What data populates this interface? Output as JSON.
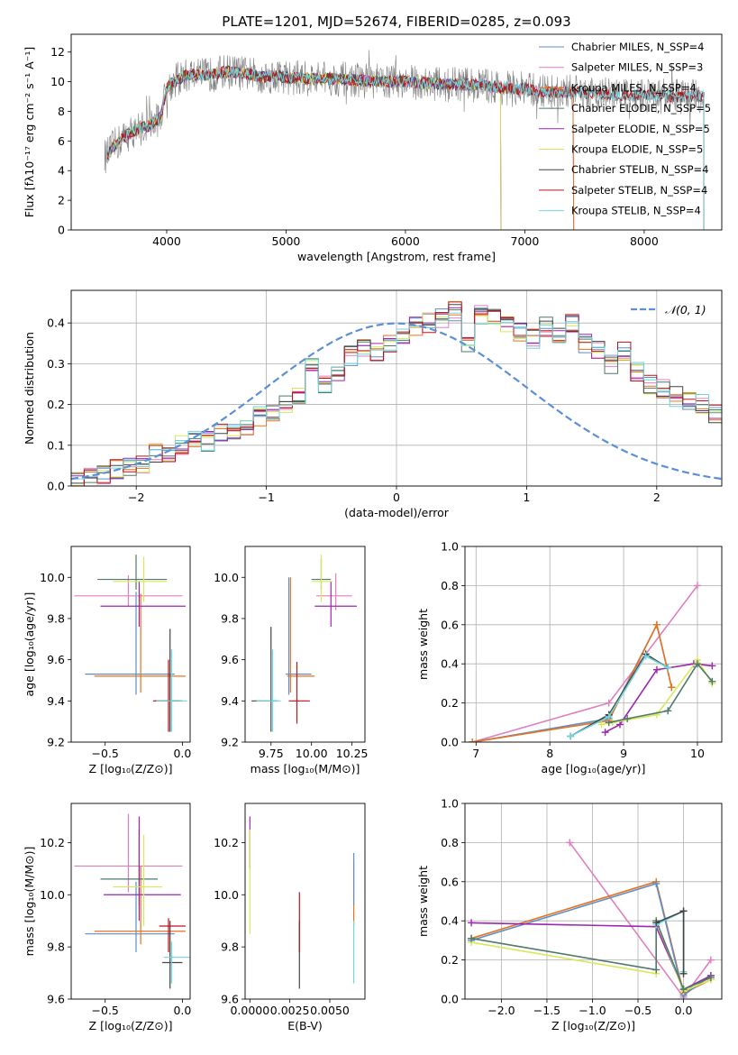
{
  "chart_data": [
    {
      "type": "line",
      "id": "spectrum",
      "title": "PLATE=1201, MJD=52674, FIBERID=0285, z=0.093",
      "xlabel": "wavelength [Angstrom, rest frame]",
      "ylabel": "Flux [fλ10⁻¹⁷ erg cm⁻² s⁻¹ A⁻¹]",
      "xlim": [
        3200,
        8650
      ],
      "ylim": [
        0,
        13.2
      ],
      "xticks": [
        4000,
        5000,
        6000,
        7000,
        8000
      ],
      "yticks": [
        0,
        2,
        4,
        6,
        8,
        10,
        12
      ],
      "grid": false,
      "legend_position": "top-right",
      "continuum": {
        "x": [
          3500,
          3550,
          3650,
          3750,
          3850,
          3950,
          4000,
          4100,
          4200,
          4300,
          4400,
          4500,
          4600,
          4700,
          4800,
          4900,
          5000,
          5200,
          5400,
          5600,
          5800,
          6000,
          6200,
          6400,
          6600,
          6800,
          7000,
          7200,
          7400,
          7600,
          7800,
          8000,
          8200,
          8400
        ],
        "y": [
          5.0,
          5.6,
          6.3,
          6.8,
          7.0,
          7.6,
          9.6,
          10.2,
          10.5,
          10.4,
          10.5,
          10.7,
          10.6,
          10.5,
          10.3,
          10.4,
          10.3,
          10.2,
          10.2,
          10.1,
          10.0,
          10.0,
          9.9,
          9.8,
          9.8,
          9.6,
          9.5,
          9.3,
          9.3,
          9.2,
          9.1,
          9.1,
          9.0,
          9.0
        ]
      },
      "model_series": [
        {
          "name": "Chabrier MILES, N_SSP=4",
          "color": "#5b8fc9",
          "wl_range": [
            3500,
            7410
          ]
        },
        {
          "name": "Salpeter MILES, N_SSP=3",
          "color": "#e07fbd",
          "wl_range": [
            3500,
            7410
          ]
        },
        {
          "name": "Kroupa MILES, N_SSP=4",
          "color": "#e8731f",
          "wl_range": [
            3500,
            7410
          ]
        },
        {
          "name": "Chabrier ELODIE, N_SSP=5",
          "color": "#4f7a6a",
          "wl_range": [
            3500,
            6800
          ]
        },
        {
          "name": "Salpeter ELODIE, N_SSP=5",
          "color": "#9c27b0",
          "wl_range": [
            3500,
            6800
          ]
        },
        {
          "name": "Kroupa ELODIE, N_SSP=5",
          "color": "#d8e85a",
          "wl_range": [
            3500,
            6800
          ]
        },
        {
          "name": "Chabrier STELIB, N_SSP=4",
          "color": "#444444",
          "wl_range": [
            3500,
            8500
          ]
        },
        {
          "name": "Salpeter STELIB, N_SSP=4",
          "color": "#c0121b",
          "wl_range": [
            3500,
            8500
          ]
        },
        {
          "name": "Kroupa STELIB, N_SSP=4",
          "color": "#6fd6e0",
          "wl_range": [
            3500,
            8500
          ]
        }
      ],
      "data_color": "#808080"
    },
    {
      "type": "bar",
      "id": "residuals",
      "xlabel": "(data-model)/error",
      "ylabel": "Normed distribution",
      "xlim": [
        -2.5,
        2.5
      ],
      "ylim": [
        0,
        0.48
      ],
      "xticks": [
        -2,
        -1,
        0,
        1,
        2
      ],
      "yticks": [
        0.0,
        0.1,
        0.2,
        0.3,
        0.4
      ],
      "grid": true,
      "legend_position": "top-right",
      "legend": "𝒩(0, 1)",
      "gaussian": {
        "mu": 0,
        "sigma": 1,
        "color": "#5b8fd6"
      },
      "bin_width": 0.1,
      "bin_start": -2.5,
      "histogram": [
        0.01,
        0.02,
        0.03,
        0.04,
        0.05,
        0.05,
        0.08,
        0.07,
        0.1,
        0.11,
        0.11,
        0.13,
        0.14,
        0.15,
        0.17,
        0.18,
        0.2,
        0.22,
        0.29,
        0.25,
        0.28,
        0.32,
        0.34,
        0.33,
        0.35,
        0.37,
        0.39,
        0.4,
        0.41,
        0.43,
        0.35,
        0.42,
        0.41,
        0.4,
        0.38,
        0.36,
        0.39,
        0.37,
        0.4,
        0.35,
        0.33,
        0.3,
        0.33,
        0.28,
        0.25,
        0.24,
        0.22,
        0.21,
        0.2,
        0.18,
        0.17,
        0.15,
        0.14,
        0.12,
        0.11,
        0.1,
        0.09,
        0.08,
        0.07,
        0.07,
        0.06,
        0.05,
        0.05,
        0.04,
        0.04,
        0.03,
        0.03,
        0.03,
        0.02,
        0.02
      ],
      "series_colors": [
        "#5b8fc9",
        "#e07fbd",
        "#e8731f",
        "#4f7a6a",
        "#9c27b0",
        "#d8e85a",
        "#444444",
        "#c0121b",
        "#6fd6e0"
      ]
    },
    {
      "type": "scatter",
      "id": "age-vs-Z",
      "xlabel": "Z [log₁₀(Z/Z⊙)]",
      "ylabel": "age  [log₁₀(age/yr)]",
      "xlim": [
        -0.72,
        0.05
      ],
      "ylim": [
        9.2,
        10.15
      ],
      "xticks": [
        -0.5,
        0.0
      ],
      "yticks": [
        9.2,
        9.4,
        9.6,
        9.8,
        10.0
      ],
      "grid": false,
      "points": [
        {
          "color": "#5b8fc9",
          "x": -0.3,
          "y": 9.53,
          "xerr": [
            0.33,
            0.25
          ],
          "yerr": [
            0.1,
            0.4
          ]
        },
        {
          "color": "#e07fbd",
          "x": -0.35,
          "y": 9.91,
          "xerr": [
            0.35,
            0.35
          ],
          "yerr": [
            0.05,
            0.1
          ]
        },
        {
          "color": "#e8731f",
          "x": -0.27,
          "y": 9.52,
          "xerr": [
            0.3,
            0.29
          ],
          "yerr": [
            0.08,
            0.4
          ]
        },
        {
          "color": "#4f7a6a",
          "x": -0.3,
          "y": 9.99,
          "xerr": [
            0.25,
            0.2
          ],
          "yerr": [
            0.05,
            0.12
          ]
        },
        {
          "color": "#9c27b0",
          "x": -0.28,
          "y": 9.86,
          "xerr": [
            0.25,
            0.3
          ],
          "yerr": [
            0.1,
            0.12
          ]
        },
        {
          "color": "#d8e85a",
          "x": -0.25,
          "y": 9.98,
          "xerr": [
            0.2,
            0.15
          ],
          "yerr": [
            0.1,
            0.12
          ]
        },
        {
          "color": "#444444",
          "x": -0.08,
          "y": 9.4,
          "xerr": [
            0.1,
            0.08
          ],
          "yerr": [
            0.15,
            0.35
          ]
        },
        {
          "color": "#c0121b",
          "x": -0.09,
          "y": 9.4,
          "xerr": [
            0.1,
            0.07
          ],
          "yerr": [
            0.15,
            0.2
          ]
        },
        {
          "color": "#6fd6e0",
          "x": -0.07,
          "y": 9.4,
          "xerr": [
            0.1,
            0.1
          ],
          "yerr": [
            0.15,
            0.25
          ]
        }
      ]
    },
    {
      "type": "scatter",
      "id": "age-vs-mass",
      "xlabel": "mass [log₁₀(M/M⊙)]",
      "ylabel": "",
      "xlim": [
        9.59,
        10.33
      ],
      "ylim": [
        9.2,
        10.15
      ],
      "xticks": [
        9.75,
        10.0,
        10.25
      ],
      "yticks": [
        9.2,
        9.4,
        9.6,
        9.8,
        10.0
      ],
      "grid": false,
      "points": [
        {
          "color": "#5b8fc9",
          "x": 9.86,
          "y": 9.53,
          "xerr": [
            0.02,
            0.14
          ],
          "yerr": [
            0.1,
            0.47
          ]
        },
        {
          "color": "#e07fbd",
          "x": 10.15,
          "y": 9.91,
          "xerr": [
            0.12,
            0.1
          ],
          "yerr": [
            0.07,
            0.11
          ]
        },
        {
          "color": "#e8731f",
          "x": 9.87,
          "y": 9.52,
          "xerr": [
            0.02,
            0.15
          ],
          "yerr": [
            0.08,
            0.48
          ]
        },
        {
          "color": "#4f7a6a",
          "x": 10.06,
          "y": 9.99,
          "xerr": [
            0.06,
            0.06
          ],
          "yerr": [
            0.05,
            0.1
          ]
        },
        {
          "color": "#9c27b0",
          "x": 10.12,
          "y": 9.86,
          "xerr": [
            0.1,
            0.16
          ],
          "yerr": [
            0.1,
            0.12
          ]
        },
        {
          "color": "#d8e85a",
          "x": 10.06,
          "y": 9.98,
          "xerr": [
            0.06,
            0.07
          ],
          "yerr": [
            0.1,
            0.13
          ]
        },
        {
          "color": "#444444",
          "x": 9.75,
          "y": 9.4,
          "xerr": [
            0.12,
            0.04
          ],
          "yerr": [
            0.15,
            0.36
          ]
        },
        {
          "color": "#c0121b",
          "x": 9.91,
          "y": 9.4,
          "xerr": [
            0.05,
            0.08
          ],
          "yerr": [
            0.11,
            0.19
          ]
        },
        {
          "color": "#6fd6e0",
          "x": 9.76,
          "y": 9.4,
          "xerr": [
            0.1,
            0.05
          ],
          "yerr": [
            0.15,
            0.25
          ]
        }
      ]
    },
    {
      "type": "line",
      "id": "weight-vs-age",
      "xlabel": "age  [log₁₀(age/yr)]",
      "ylabel": "mass weight",
      "xlim": [
        6.85,
        10.33
      ],
      "ylim": [
        0,
        1.0
      ],
      "xticks": [
        7,
        8,
        9,
        10
      ],
      "yticks": [
        0.0,
        0.2,
        0.4,
        0.6,
        0.8,
        1.0
      ],
      "grid": true,
      "series": [
        {
          "color": "#e07fbd",
          "x": [
            6.95,
            8.8,
            10.0
          ],
          "y": [
            0.0,
            0.2,
            0.8
          ]
        },
        {
          "color": "#5b8fc9",
          "x": [
            6.95,
            8.8,
            9.45,
            9.65
          ],
          "y": [
            0.0,
            0.12,
            0.6,
            0.28
          ]
        },
        {
          "color": "#e8731f",
          "x": [
            6.95,
            8.8,
            9.45,
            9.65
          ],
          "y": [
            0.0,
            0.11,
            0.6,
            0.28
          ]
        },
        {
          "color": "#9c27b0",
          "x": [
            8.75,
            8.95,
            9.45,
            9.95,
            10.2
          ],
          "y": [
            0.05,
            0.09,
            0.37,
            0.4,
            0.39
          ]
        },
        {
          "color": "#d8e85a",
          "x": [
            8.7,
            8.85,
            9.45,
            10.0,
            10.2
          ],
          "y": [
            0.09,
            0.1,
            0.14,
            0.42,
            0.3
          ]
        },
        {
          "color": "#4f7a6a",
          "x": [
            8.8,
            9.05,
            9.6,
            10.0,
            10.2
          ],
          "y": [
            0.1,
            0.12,
            0.16,
            0.4,
            0.31
          ]
        },
        {
          "color": "#444444",
          "x": [
            8.28,
            8.8,
            9.3,
            9.6
          ],
          "y": [
            0.03,
            0.14,
            0.45,
            0.38
          ]
        },
        {
          "color": "#6fd6e0",
          "x": [
            8.28,
            8.8,
            9.3,
            9.6
          ],
          "y": [
            0.03,
            0.13,
            0.44,
            0.38
          ]
        }
      ]
    },
    {
      "type": "scatter",
      "id": "mass-vs-Z",
      "xlabel": "Z [log₁₀(Z/Z⊙)]",
      "ylabel": "mass [log₁₀(M/M⊙)]",
      "xlim": [
        -0.72,
        0.05
      ],
      "ylim": [
        9.6,
        10.35
      ],
      "xticks": [
        -0.5,
        0.0
      ],
      "yticks": [
        9.6,
        9.8,
        10.0,
        10.2
      ],
      "grid": false,
      "points": [
        {
          "color": "#5b8fc9",
          "x": -0.3,
          "y": 9.85,
          "xerr": [
            0.33,
            0.25
          ],
          "yerr": [
            0.07,
            0.2
          ]
        },
        {
          "color": "#e07fbd",
          "x": -0.35,
          "y": 10.11,
          "xerr": [
            0.35,
            0.35
          ],
          "yerr": [
            0.1,
            0.2
          ]
        },
        {
          "color": "#e8731f",
          "x": -0.27,
          "y": 9.86,
          "xerr": [
            0.3,
            0.29
          ],
          "yerr": [
            0.05,
            0.25
          ]
        },
        {
          "color": "#4f7a6a",
          "x": -0.28,
          "y": 10.06,
          "xerr": [
            0.25,
            0.12
          ],
          "yerr": [
            0.1,
            0.19
          ]
        },
        {
          "color": "#9c27b0",
          "x": -0.28,
          "y": 10.0,
          "xerr": [
            0.23,
            0.27
          ],
          "yerr": [
            0.1,
            0.3
          ]
        },
        {
          "color": "#d8e85a",
          "x": -0.25,
          "y": 10.03,
          "xerr": [
            0.2,
            0.12
          ],
          "yerr": [
            0.15,
            0.2
          ]
        },
        {
          "color": "#444444",
          "x": -0.08,
          "y": 9.74,
          "xerr": [
            0.05,
            0.08
          ],
          "yerr": [
            0.1,
            0.16
          ]
        },
        {
          "color": "#c0121b",
          "x": -0.09,
          "y": 9.88,
          "xerr": [
            0.06,
            0.11
          ],
          "yerr": [
            0.1,
            0.03
          ]
        },
        {
          "color": "#6fd6e0",
          "x": -0.07,
          "y": 9.76,
          "xerr": [
            0.05,
            0.12
          ],
          "yerr": [
            0.1,
            0.06
          ]
        }
      ]
    },
    {
      "type": "scatter",
      "id": "mass-vs-EBV",
      "xlabel": "E(B-V)",
      "ylabel": "",
      "xlim": [
        -0.0003,
        0.0072
      ],
      "ylim": [
        9.6,
        10.35
      ],
      "xticks": [
        0.0,
        0.0025,
        0.005
      ],
      "xticklabels": [
        "0.0000",
        "0.0025",
        "0.0050"
      ],
      "yticks": [
        9.6,
        9.8,
        10.0,
        10.2
      ],
      "grid": false,
      "points": [
        {
          "color": "#9c27b0",
          "x": 0.0,
          "y": 10.2,
          "yerr": [
            0.1,
            0.1
          ]
        },
        {
          "color": "#d8e85a",
          "x": 0.0,
          "y": 10.05,
          "yerr": [
            0.2,
            0.2
          ]
        },
        {
          "color": "#444444",
          "x": 0.0031,
          "y": 9.74,
          "yerr": [
            0.1,
            0.16
          ]
        },
        {
          "color": "#c0121b",
          "x": 0.0031,
          "y": 9.88,
          "yerr": [
            0.1,
            0.13
          ]
        },
        {
          "color": "#e8731f",
          "x": 0.0065,
          "y": 9.98,
          "yerr": [
            0.1,
            0.14
          ]
        },
        {
          "color": "#5b8fc9",
          "x": 0.0065,
          "y": 10.04,
          "yerr": [
            0.08,
            0.12
          ]
        },
        {
          "color": "#6fd6e0",
          "x": 0.0065,
          "y": 9.78,
          "yerr": [
            0.12,
            0.12
          ]
        }
      ]
    },
    {
      "type": "line",
      "id": "weight-vs-Z",
      "xlabel": "Z [log₁₀(Z/Z⊙)]",
      "ylabel": "mass weight",
      "xlim": [
        -2.4,
        0.42
      ],
      "ylim": [
        0,
        1.0
      ],
      "xticks": [
        -2.0,
        -1.5,
        -1.0,
        -0.5,
        0.0
      ],
      "yticks": [
        0.0,
        0.2,
        0.4,
        0.6,
        0.8,
        1.0
      ],
      "grid": true,
      "series": [
        {
          "color": "#e07fbd",
          "x": [
            -1.25,
            0.0,
            0.3
          ],
          "y": [
            0.8,
            0.01,
            0.2
          ]
        },
        {
          "color": "#e8731f",
          "x": [
            -2.33,
            -0.3,
            0.0,
            0.3
          ],
          "y": [
            0.31,
            0.6,
            0.03,
            0.1
          ]
        },
        {
          "color": "#5b8fc9",
          "x": [
            -2.33,
            -0.3,
            0.0,
            0.3
          ],
          "y": [
            0.3,
            0.59,
            0.02,
            0.12
          ]
        },
        {
          "color": "#9c27b0",
          "x": [
            -2.33,
            -0.3,
            0.0,
            0.3
          ],
          "y": [
            0.39,
            0.37,
            0.05,
            0.12
          ]
        },
        {
          "color": "#d8e85a",
          "x": [
            -2.33,
            -0.3,
            -0.3,
            0.0,
            0.3
          ],
          "y": [
            0.29,
            0.13,
            0.4,
            0.04,
            0.1
          ]
        },
        {
          "color": "#4f7a6a",
          "x": [
            -2.33,
            -0.3,
            -0.3,
            0.0,
            0.3
          ],
          "y": [
            0.31,
            0.15,
            0.4,
            0.05,
            0.11
          ]
        },
        {
          "color": "#6fd6e0",
          "x": [
            -0.3,
            0.0,
            0.0
          ],
          "y": [
            0.38,
            0.45,
            0.14
          ]
        },
        {
          "color": "#444444",
          "x": [
            -0.3,
            0.0,
            0.0
          ],
          "y": [
            0.39,
            0.45,
            0.13
          ]
        }
      ]
    }
  ]
}
